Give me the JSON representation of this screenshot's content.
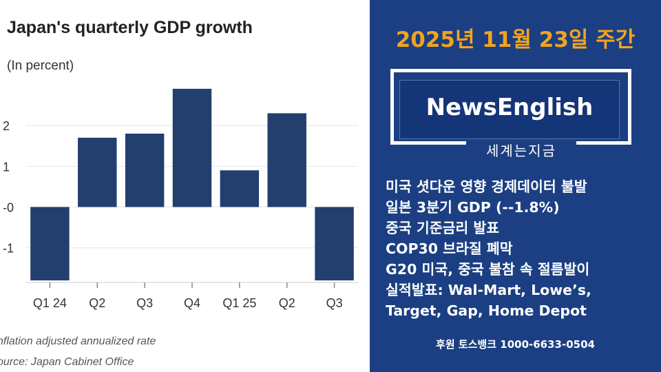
{
  "chart_data": {
    "type": "bar",
    "title": "Japan's quarterly GDP growth",
    "subtitle": "(In percent)",
    "categories": [
      "Q1 24",
      "Q2",
      "Q3",
      "Q4",
      "Q1 25",
      "Q2",
      "Q3"
    ],
    "values": [
      -1.8,
      1.7,
      1.8,
      2.9,
      0.9,
      2.3,
      -1.8
    ],
    "yticks": [
      2,
      1,
      0,
      -1
    ],
    "ytick_labels": [
      "2",
      "1",
      "-0",
      "-1"
    ],
    "ylim": [
      -1.85,
      3.05
    ],
    "footnotes": [
      "nflation adjusted annualized rate",
      "ource: Japan Cabinet Office"
    ],
    "bar_color": "#223f6e"
  },
  "news": {
    "date": "2025년 11월 23일 주간",
    "brand": "NewsEnglish",
    "brand_sub": "세계는지금",
    "headlines": [
      "미국 셧다운 영향 경제데이터 불발",
      "일본 3분기 GDP (--1.8%)",
      "중국 기준금리 발표",
      "COP30 브라질 폐막",
      "G20 미국, 중국 불참 속 절름발이",
      "실적발표: Wal-Mart, Lowe’s,",
      "Target, Gap, Home Depot"
    ],
    "sponsor": "후원 토스뱅크 1000-6633-0504"
  },
  "colors": {
    "accent": "#f2a41f",
    "panel": "#1b3f82"
  }
}
